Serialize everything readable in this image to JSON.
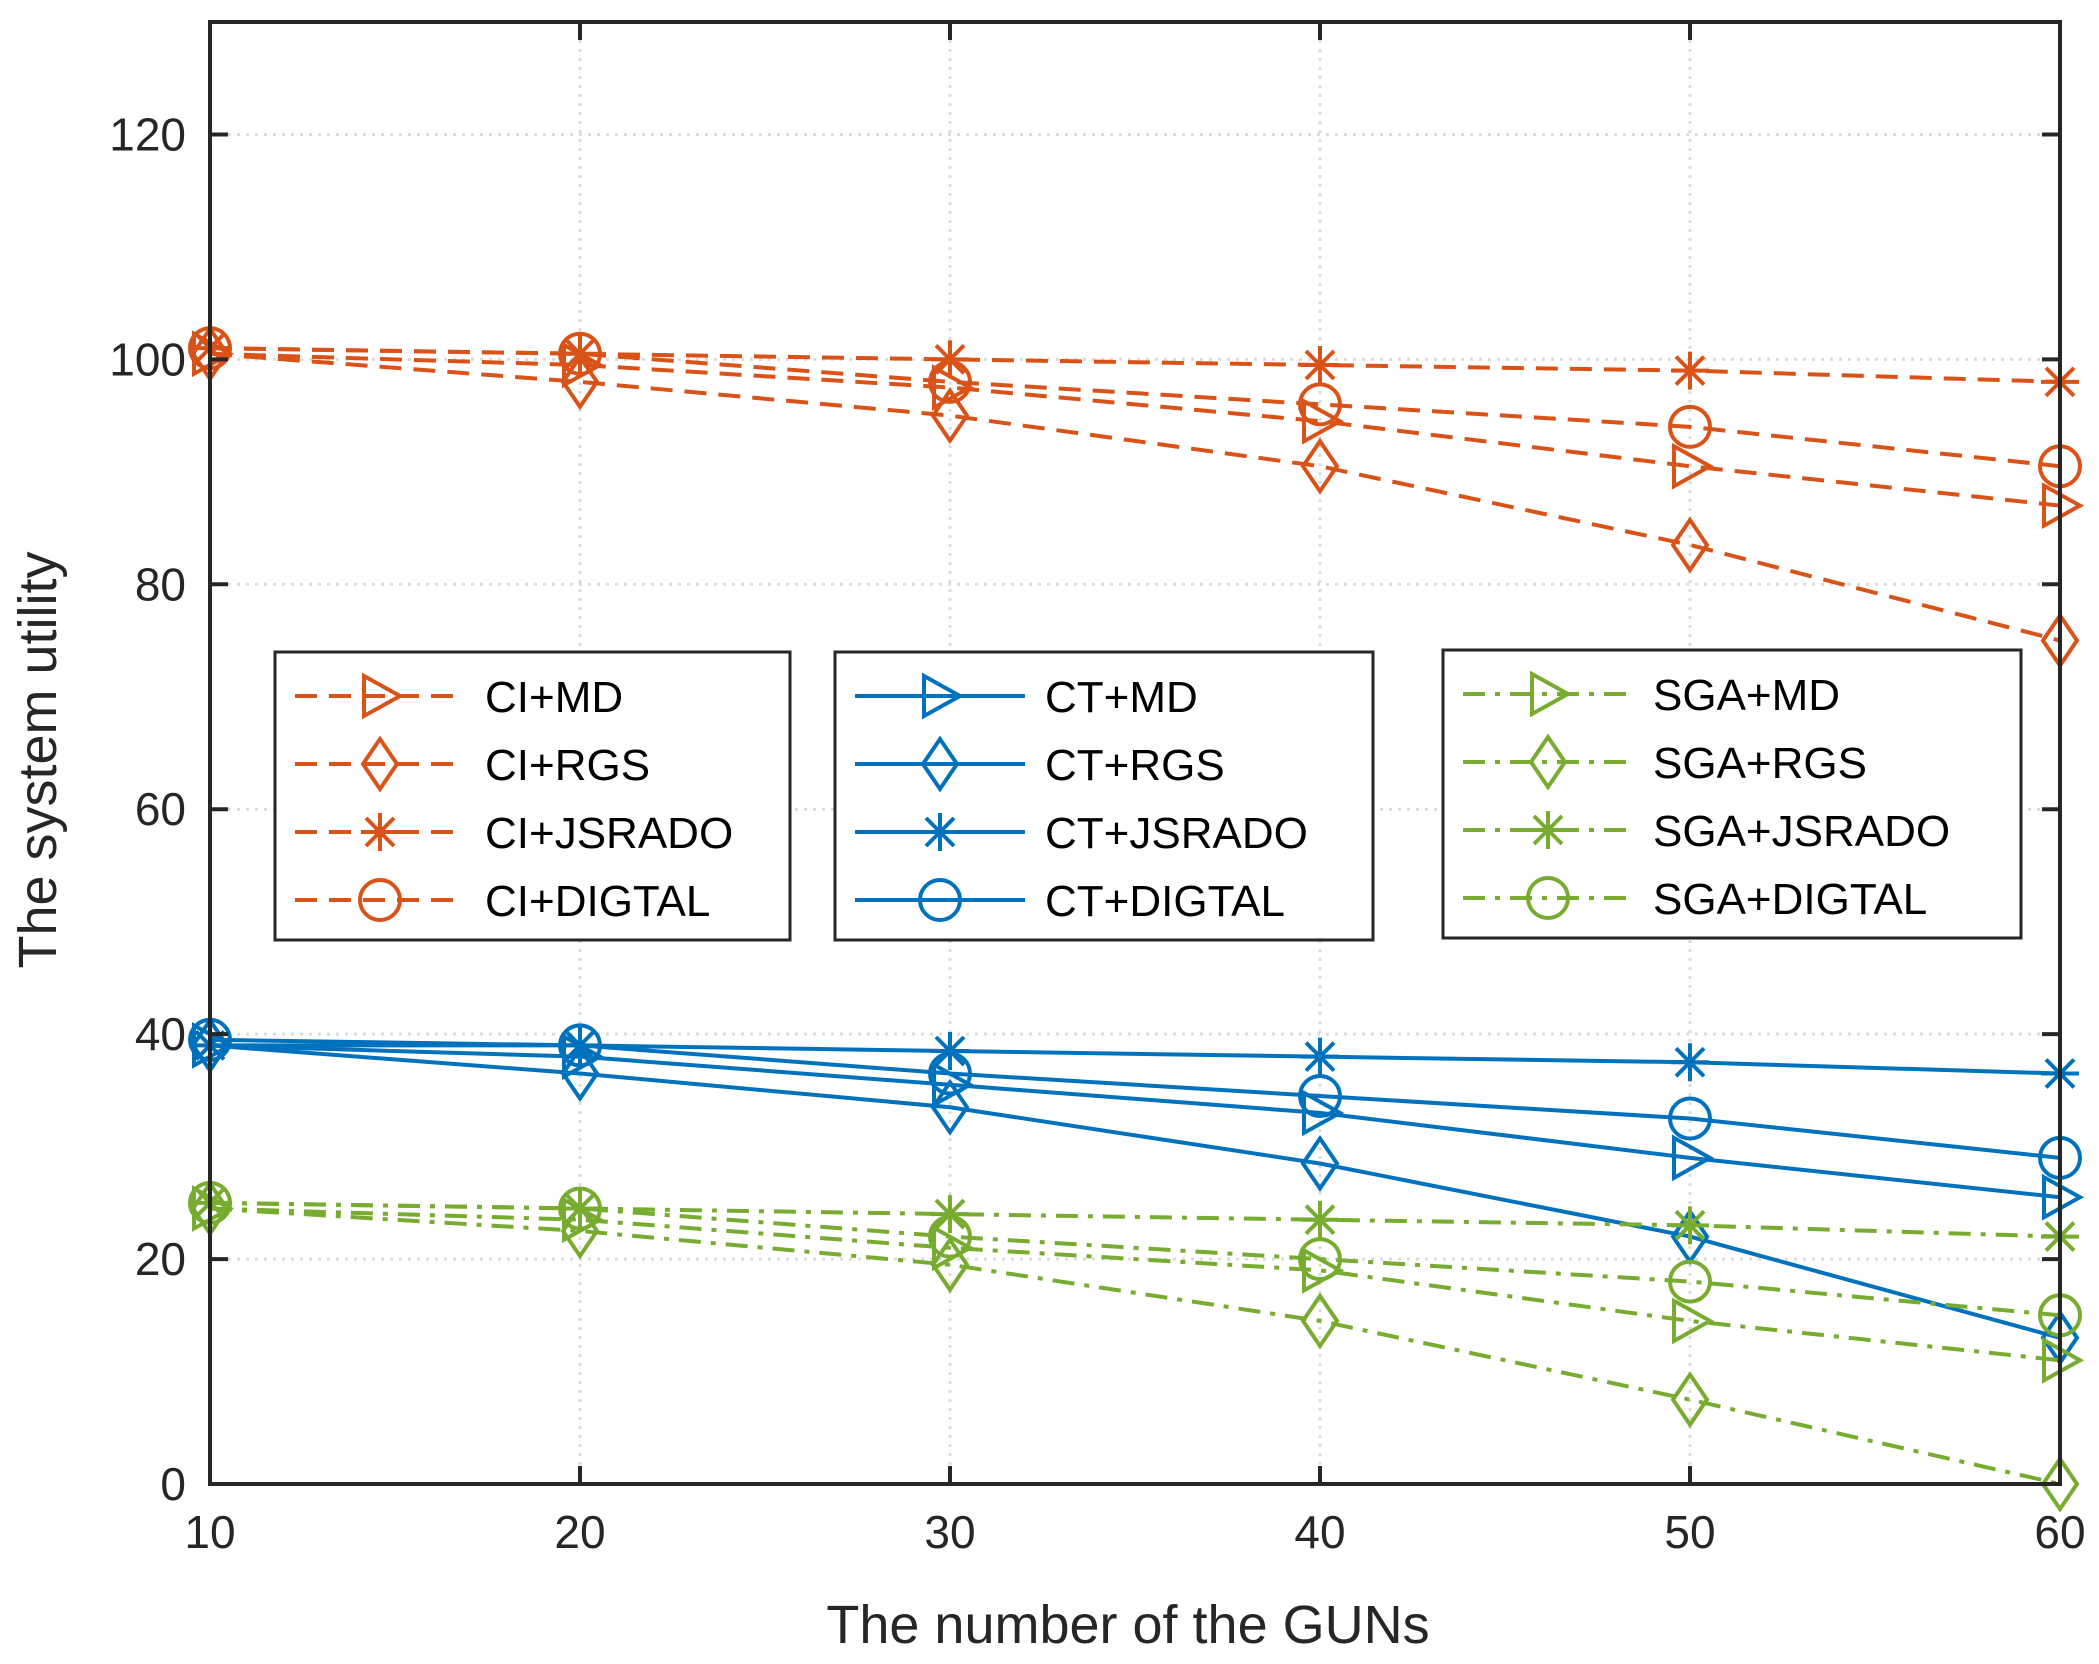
{
  "chart_data": {
    "type": "line",
    "title": "",
    "xlabel": "The number of the GUNs",
    "ylabel": "The system utility",
    "xlim": [
      10,
      60
    ],
    "ylim": [
      0,
      130
    ],
    "grid": true,
    "x": [
      10,
      20,
      30,
      40,
      50,
      60
    ],
    "x_ticks": [
      10,
      20,
      30,
      40,
      50,
      60
    ],
    "y_ticks": [
      0,
      20,
      40,
      60,
      80,
      100,
      120
    ],
    "legend_groups": [
      {
        "position": "middle-left",
        "series": [
          "CI+MD",
          "CI+RGS",
          "CI+JSRADO",
          "CI+DIGTAL"
        ]
      },
      {
        "position": "middle-center",
        "series": [
          "CT+MD",
          "CT+RGS",
          "CT+JSRADO",
          "CT+DIGTAL"
        ]
      },
      {
        "position": "middle-right",
        "series": [
          "SGA+MD",
          "SGA+RGS",
          "SGA+JSRADO",
          "SGA+DIGTAL"
        ]
      }
    ],
    "series": [
      {
        "name": "CI+MD",
        "color": "#D95319",
        "dash": "dashed",
        "marker": "triangle-right",
        "values": [
          100.5,
          99.5,
          97.5,
          94.5,
          90.5,
          87
        ]
      },
      {
        "name": "CI+RGS",
        "color": "#D95319",
        "dash": "dashed",
        "marker": "diamond",
        "values": [
          100.5,
          98,
          95,
          90.5,
          83.5,
          75
        ]
      },
      {
        "name": "CI+JSRADO",
        "color": "#D95319",
        "dash": "dashed",
        "marker": "asterisk",
        "values": [
          101,
          100.5,
          100,
          99.5,
          99,
          98
        ]
      },
      {
        "name": "CI+DIGTAL",
        "color": "#D95319",
        "dash": "dashed",
        "marker": "circle",
        "values": [
          101,
          100.5,
          98,
          96,
          94,
          90.5
        ]
      },
      {
        "name": "CT+MD",
        "color": "#0072BD",
        "dash": "solid",
        "marker": "triangle-right",
        "values": [
          39,
          38,
          35.5,
          33,
          29,
          25.5
        ]
      },
      {
        "name": "CT+RGS",
        "color": "#0072BD",
        "dash": "solid",
        "marker": "diamond",
        "values": [
          39,
          36.5,
          33.5,
          28.5,
          22,
          13
        ]
      },
      {
        "name": "CT+JSRADO",
        "color": "#0072BD",
        "dash": "solid",
        "marker": "asterisk",
        "values": [
          39,
          39,
          38.5,
          38,
          37.5,
          36.5
        ]
      },
      {
        "name": "CT+DIGTAL",
        "color": "#0072BD",
        "dash": "solid",
        "marker": "circle",
        "values": [
          39.5,
          39,
          36.5,
          34.5,
          32.5,
          29
        ]
      },
      {
        "name": "SGA+MD",
        "color": "#77AC30",
        "dash": "dashdot",
        "marker": "triangle-right",
        "values": [
          24.5,
          23.5,
          21,
          19,
          14.5,
          11
        ]
      },
      {
        "name": "SGA+RGS",
        "color": "#77AC30",
        "dash": "dashdot",
        "marker": "diamond",
        "values": [
          24.5,
          22.5,
          19.5,
          14.5,
          7.5,
          0
        ]
      },
      {
        "name": "SGA+JSRADO",
        "color": "#77AC30",
        "dash": "dashdot",
        "marker": "asterisk",
        "values": [
          25,
          24.5,
          24,
          23.5,
          23,
          22
        ]
      },
      {
        "name": "SGA+DIGTAL",
        "color": "#77AC30",
        "dash": "dashdot",
        "marker": "circle",
        "values": [
          25,
          24.5,
          22,
          20,
          18,
          15
        ]
      }
    ]
  }
}
